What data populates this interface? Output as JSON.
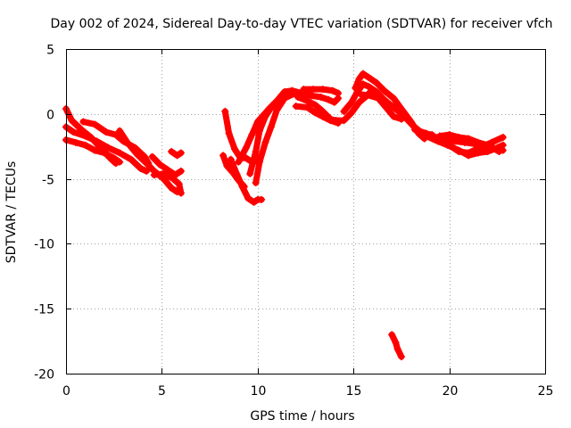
{
  "chart_data": {
    "type": "scatter",
    "title": "Day 002 of 2024, Sidereal Day-to-day VTEC variation (SDTVAR) for receiver vfch",
    "xlabel": "GPS time / hours",
    "ylabel": "SDTVAR / TECUs",
    "xlim": [
      0,
      25
    ],
    "ylim": [
      -20,
      5
    ],
    "xticks": [
      "0",
      "5",
      "10",
      "15",
      "20",
      "25"
    ],
    "yticks": [
      "5",
      "0",
      "-5",
      "-10",
      "-15",
      "-20"
    ],
    "xtick_values": [
      0,
      5,
      10,
      15,
      20,
      25
    ],
    "ytick_values": [
      5,
      0,
      -5,
      -10,
      -15,
      -20
    ],
    "grid": true,
    "marker": "+",
    "color": "#ff0000",
    "series": [
      {
        "name": "satellite arcs",
        "segments": [
          [
            [
              0.0,
              0.4
            ],
            [
              0.3,
              -0.5
            ],
            [
              0.8,
              -1.2
            ],
            [
              1.3,
              -1.8
            ],
            [
              1.8,
              -2.6
            ],
            [
              2.3,
              -3.4
            ],
            [
              2.6,
              -3.8
            ]
          ],
          [
            [
              0.0,
              -1.0
            ],
            [
              0.4,
              -1.4
            ],
            [
              1.0,
              -1.7
            ],
            [
              1.6,
              -2.1
            ],
            [
              2.2,
              -2.6
            ],
            [
              2.8,
              -3.0
            ],
            [
              3.4,
              -3.5
            ],
            [
              3.9,
              -4.2
            ],
            [
              4.2,
              -4.4
            ]
          ],
          [
            [
              0.0,
              -2.0
            ],
            [
              0.5,
              -2.2
            ],
            [
              1.0,
              -2.4
            ],
            [
              1.5,
              -2.8
            ],
            [
              2.0,
              -3.0
            ],
            [
              2.5,
              -3.4
            ],
            [
              2.8,
              -3.7
            ]
          ],
          [
            [
              0.9,
              -0.6
            ],
            [
              1.5,
              -0.8
            ],
            [
              2.1,
              -1.4
            ],
            [
              2.6,
              -1.6
            ],
            [
              3.0,
              -2.1
            ],
            [
              3.6,
              -2.6
            ],
            [
              4.1,
              -3.3
            ],
            [
              4.3,
              -3.8
            ]
          ],
          [
            [
              2.8,
              -1.3
            ],
            [
              3.2,
              -2.2
            ],
            [
              3.7,
              -3.1
            ],
            [
              4.2,
              -3.8
            ],
            [
              4.6,
              -4.4
            ],
            [
              5.1,
              -5.0
            ],
            [
              5.5,
              -5.7
            ],
            [
              5.8,
              -6.0
            ]
          ],
          [
            [
              4.5,
              -3.3
            ],
            [
              4.9,
              -3.9
            ],
            [
              5.3,
              -4.3
            ],
            [
              5.7,
              -4.7
            ],
            [
              6.0,
              -4.4
            ]
          ],
          [
            [
              5.5,
              -2.9
            ],
            [
              5.8,
              -3.2
            ],
            [
              6.0,
              -3.0
            ]
          ],
          [
            [
              4.6,
              -4.7
            ],
            [
              5.1,
              -4.6
            ],
            [
              5.6,
              -5.0
            ],
            [
              5.9,
              -5.4
            ],
            [
              6.0,
              -6.1
            ]
          ],
          [
            [
              8.2,
              -3.2
            ],
            [
              8.4,
              -4.0
            ],
            [
              8.7,
              -4.5
            ],
            [
              9.0,
              -5.1
            ],
            [
              9.3,
              -5.6
            ]
          ],
          [
            [
              8.3,
              0.2
            ],
            [
              8.5,
              -1.5
            ],
            [
              8.8,
              -2.7
            ],
            [
              9.1,
              -3.4
            ],
            [
              9.4,
              -3.4
            ],
            [
              9.7,
              -3.7
            ],
            [
              9.9,
              -3.6
            ],
            [
              10.0,
              -3.3
            ]
          ],
          [
            [
              8.6,
              -3.5
            ],
            [
              8.9,
              -4.6
            ],
            [
              9.2,
              -5.6
            ],
            [
              9.5,
              -6.5
            ],
            [
              9.8,
              -6.8
            ],
            [
              10.0,
              -6.6
            ],
            [
              10.2,
              -6.6
            ]
          ],
          [
            [
              9.0,
              -3.7
            ],
            [
              9.4,
              -2.6
            ],
            [
              9.7,
              -1.6
            ],
            [
              10.0,
              -0.6
            ],
            [
              10.3,
              -0.1
            ],
            [
              10.6,
              0.4
            ],
            [
              11.0,
              1.0
            ],
            [
              11.4,
              1.7
            ],
            [
              11.8,
              1.8
            ],
            [
              12.3,
              1.6
            ],
            [
              12.8,
              1.4
            ],
            [
              13.3,
              1.3
            ],
            [
              13.7,
              1.1
            ],
            [
              14.0,
              0.9
            ],
            [
              14.2,
              1.2
            ]
          ],
          [
            [
              9.6,
              -4.6
            ],
            [
              9.9,
              -2.9
            ],
            [
              10.1,
              -1.3
            ],
            [
              10.4,
              -0.2
            ],
            [
              10.8,
              0.7
            ],
            [
              11.2,
              1.2
            ],
            [
              11.5,
              1.6
            ]
          ],
          [
            [
              9.9,
              -5.3
            ],
            [
              10.1,
              -3.7
            ],
            [
              10.4,
              -2.2
            ],
            [
              10.7,
              -1.0
            ],
            [
              11.0,
              0.3
            ],
            [
              11.4,
              1.2
            ],
            [
              11.8,
              1.5
            ],
            [
              12.1,
              1.6
            ]
          ],
          [
            [
              12.1,
              1.3
            ],
            [
              12.6,
              1.0
            ],
            [
              13.0,
              0.7
            ],
            [
              13.4,
              0.2
            ],
            [
              13.8,
              -0.4
            ],
            [
              14.1,
              -0.5
            ],
            [
              14.5,
              -0.5
            ],
            [
              14.9,
              0.1
            ],
            [
              15.3,
              0.9
            ],
            [
              15.7,
              1.4
            ],
            [
              16.0,
              1.9
            ]
          ],
          [
            [
              12.4,
              1.9
            ],
            [
              12.9,
              1.9
            ],
            [
              13.4,
              1.9
            ],
            [
              13.9,
              1.8
            ],
            [
              14.2,
              1.6
            ]
          ],
          [
            [
              12.0,
              0.6
            ],
            [
              12.6,
              0.5
            ],
            [
              13.0,
              0.1
            ],
            [
              13.4,
              -0.2
            ],
            [
              13.8,
              -0.5
            ],
            [
              14.2,
              -0.7
            ]
          ],
          [
            [
              14.5,
              0.2
            ],
            [
              14.9,
              0.9
            ],
            [
              15.2,
              1.7
            ],
            [
              15.5,
              2.3
            ],
            [
              15.8,
              2.1
            ],
            [
              16.2,
              1.7
            ],
            [
              16.6,
              1.1
            ],
            [
              17.1,
              0.5
            ],
            [
              17.6,
              -0.1
            ],
            [
              18.1,
              -0.9
            ],
            [
              18.6,
              -1.5
            ],
            [
              19.1,
              -1.6
            ]
          ],
          [
            [
              15.1,
              2.0
            ],
            [
              15.3,
              2.7
            ],
            [
              15.5,
              3.1
            ],
            [
              15.8,
              2.8
            ],
            [
              16.2,
              2.4
            ],
            [
              16.6,
              1.8
            ],
            [
              17.1,
              1.2
            ],
            [
              17.6,
              0.2
            ],
            [
              18.0,
              -0.6
            ],
            [
              18.4,
              -1.5
            ],
            [
              18.7,
              -1.9
            ]
          ],
          [
            [
              15.4,
              1.5
            ],
            [
              15.9,
              1.4
            ],
            [
              16.3,
              1.2
            ],
            [
              16.7,
              0.5
            ],
            [
              17.1,
              -0.2
            ],
            [
              17.5,
              -0.4
            ]
          ],
          [
            [
              18.2,
              -1.2
            ],
            [
              18.8,
              -1.5
            ],
            [
              19.3,
              -1.8
            ],
            [
              19.8,
              -1.9
            ],
            [
              20.3,
              -2.1
            ],
            [
              20.8,
              -2.2
            ],
            [
              21.3,
              -2.3
            ],
            [
              21.8,
              -2.4
            ],
            [
              22.3,
              -2.6
            ],
            [
              22.8,
              -2.8
            ]
          ],
          [
            [
              18.8,
              -1.7
            ],
            [
              19.4,
              -2.1
            ],
            [
              19.9,
              -2.4
            ],
            [
              20.5,
              -2.8
            ],
            [
              21.0,
              -3.2
            ],
            [
              21.5,
              -3.0
            ],
            [
              22.0,
              -2.9
            ],
            [
              22.5,
              -2.6
            ],
            [
              22.8,
              -2.4
            ]
          ],
          [
            [
              19.5,
              -1.7
            ],
            [
              20.0,
              -1.6
            ],
            [
              20.5,
              -1.8
            ],
            [
              21.0,
              -1.9
            ],
            [
              21.5,
              -2.2
            ],
            [
              22.0,
              -2.4
            ],
            [
              22.6,
              -2.9
            ]
          ],
          [
            [
              20.0,
              -2.4
            ],
            [
              20.5,
              -2.9
            ],
            [
              21.0,
              -3.0
            ],
            [
              21.6,
              -2.6
            ],
            [
              22.2,
              -2.2
            ],
            [
              22.8,
              -1.8
            ]
          ],
          [
            [
              17.0,
              -17.0
            ],
            [
              17.2,
              -17.6
            ],
            [
              17.3,
              -18.1
            ],
            [
              17.5,
              -18.7
            ]
          ]
        ]
      }
    ]
  }
}
